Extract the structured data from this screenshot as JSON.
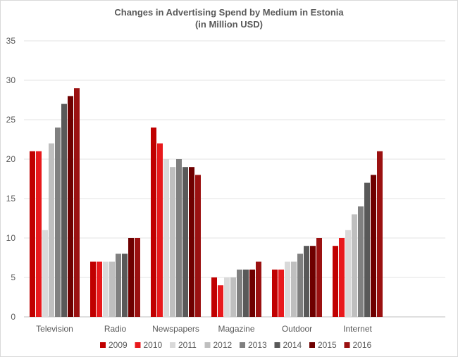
{
  "chart_data": {
    "type": "bar",
    "title": "Changes in Advertising Spend by Medium in Estonia",
    "subtitle": "(in Million USD)",
    "xlabel": "",
    "ylabel": "",
    "ylim": [
      0,
      35
    ],
    "yticks": [
      0,
      5,
      10,
      15,
      20,
      25,
      30,
      35
    ],
    "grid": true,
    "legend_position": "bottom",
    "categories": [
      "Television",
      "Radio",
      "Newspapers",
      "Magazine",
      "Outdoor",
      "Internet"
    ],
    "series": [
      {
        "name": "2009",
        "color": "#c00000",
        "values": [
          21,
          7,
          24,
          5,
          6,
          9
        ]
      },
      {
        "name": "2010",
        "color": "#e8191c",
        "values": [
          21,
          7,
          22,
          4,
          6,
          10
        ]
      },
      {
        "name": "2011",
        "color": "#d9d9d9",
        "values": [
          11,
          7,
          20,
          5,
          7,
          11
        ]
      },
      {
        "name": "2012",
        "color": "#bfbfbf",
        "values": [
          22,
          7,
          19,
          5,
          7,
          13
        ]
      },
      {
        "name": "2013",
        "color": "#808080",
        "values": [
          24,
          8,
          20,
          6,
          8,
          14
        ]
      },
      {
        "name": "2014",
        "color": "#595959",
        "values": [
          27,
          8,
          19,
          6,
          9,
          17
        ]
      },
      {
        "name": "2015",
        "color": "#6e0000",
        "values": [
          28,
          10,
          19,
          6,
          9,
          18
        ]
      },
      {
        "name": "2016",
        "color": "#9b1111",
        "values": [
          29,
          10,
          18,
          7,
          10,
          21
        ]
      }
    ]
  }
}
